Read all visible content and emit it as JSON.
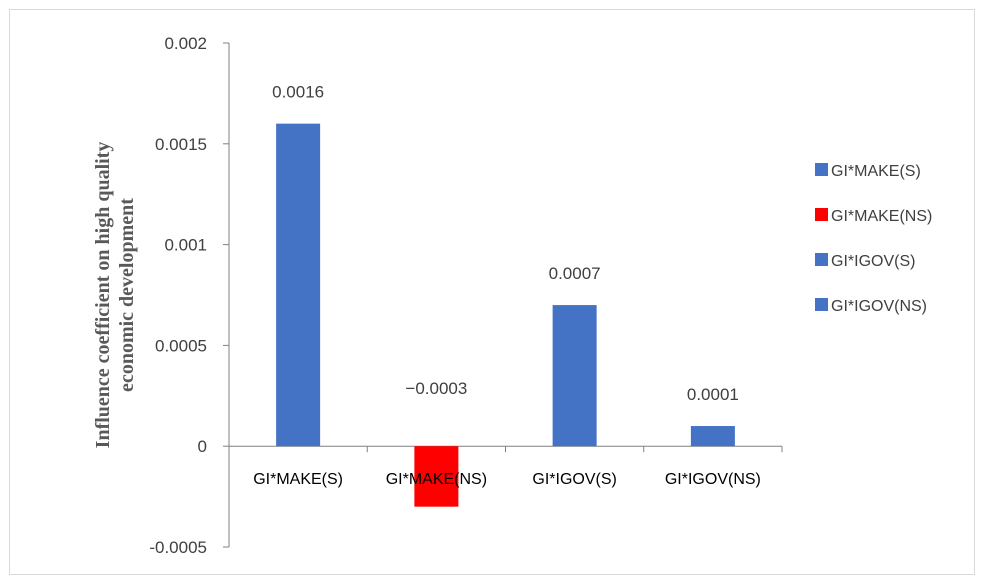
{
  "chart_data": {
    "type": "bar",
    "title": "",
    "xlabel": "",
    "ylabel_lines": [
      "Influence coefficient on high quality",
      "economic development"
    ],
    "categories": [
      "GI*MAKE(S)",
      "GI*MAKE(NS)",
      "GI*IGOV(S)",
      "GI*IGOV(NS)"
    ],
    "values": [
      0.0016,
      -0.0003,
      0.0007,
      0.0001
    ],
    "data_labels": [
      "0.0016",
      "−0.0003",
      "0.0007",
      "0.0001"
    ],
    "bar_colors": [
      "#4472C4",
      "#FF0000",
      "#4472C4",
      "#4472C4"
    ],
    "ylim": [
      -0.0005,
      0.002
    ],
    "yticks": [
      -0.0005,
      0,
      0.0005,
      0.001,
      0.0015,
      0.002
    ],
    "ytick_labels": [
      "-0.0005",
      "0",
      "0.0005",
      "0.001",
      "0.0015",
      "0.002"
    ],
    "grid": false,
    "legend_position": "right",
    "legend": [
      {
        "label": "GI*MAKE(S)",
        "color": "#4472C4"
      },
      {
        "label": "GI*MAKE(NS)",
        "color": "#FF0000"
      },
      {
        "label": "GI*IGOV(S)",
        "color": "#4472C4"
      },
      {
        "label": "GI*IGOV(NS)",
        "color": "#4472C4"
      }
    ],
    "axis_color": "#808080"
  }
}
